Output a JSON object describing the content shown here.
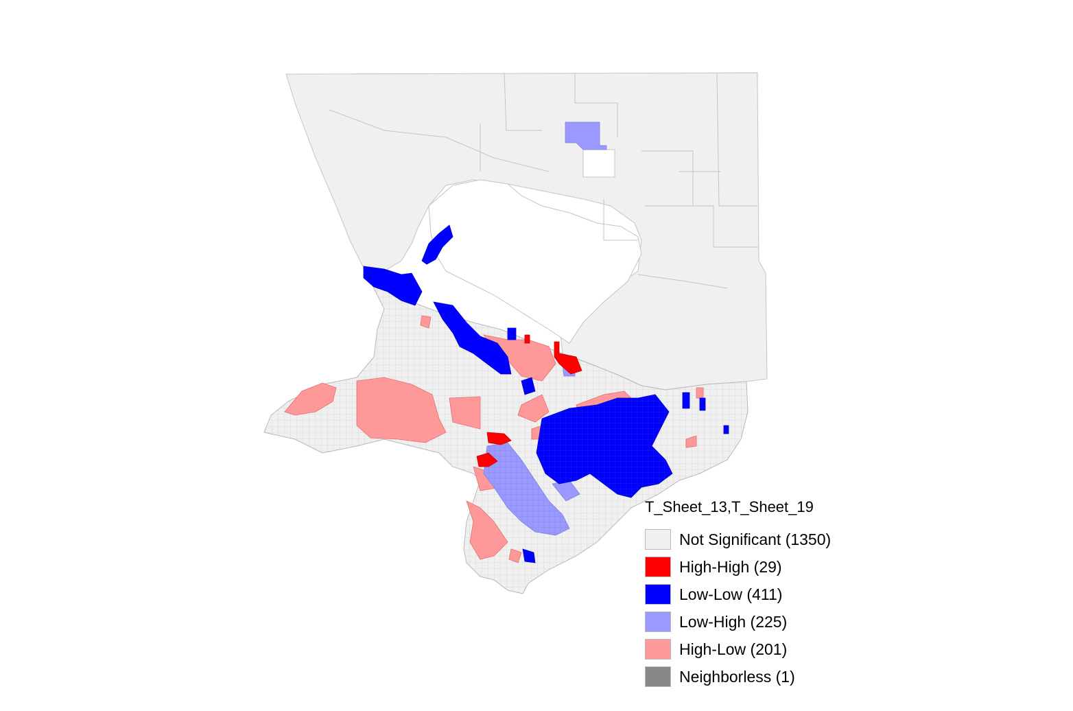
{
  "legend": {
    "title": "T_Sheet_13,T_Sheet_19",
    "items": [
      {
        "label": "Not Significant (1350)",
        "color": "#f0f0f0"
      },
      {
        "label": "High-High (29)",
        "color": "#ff0000"
      },
      {
        "label": "Low-Low (411)",
        "color": "#0000ff"
      },
      {
        "label": "Low-High (225)",
        "color": "#9999ff"
      },
      {
        "label": "High-Low (201)",
        "color": "#ff9999"
      },
      {
        "label": "Neighborless (1)",
        "color": "#888888"
      }
    ]
  },
  "colors": {
    "not_significant": "#f0f0f0",
    "boundary": "#c4c4c4",
    "high_high": "#ff0000",
    "low_low": "#0000ff",
    "low_high": "#9999ff",
    "high_low": "#ff9999"
  }
}
